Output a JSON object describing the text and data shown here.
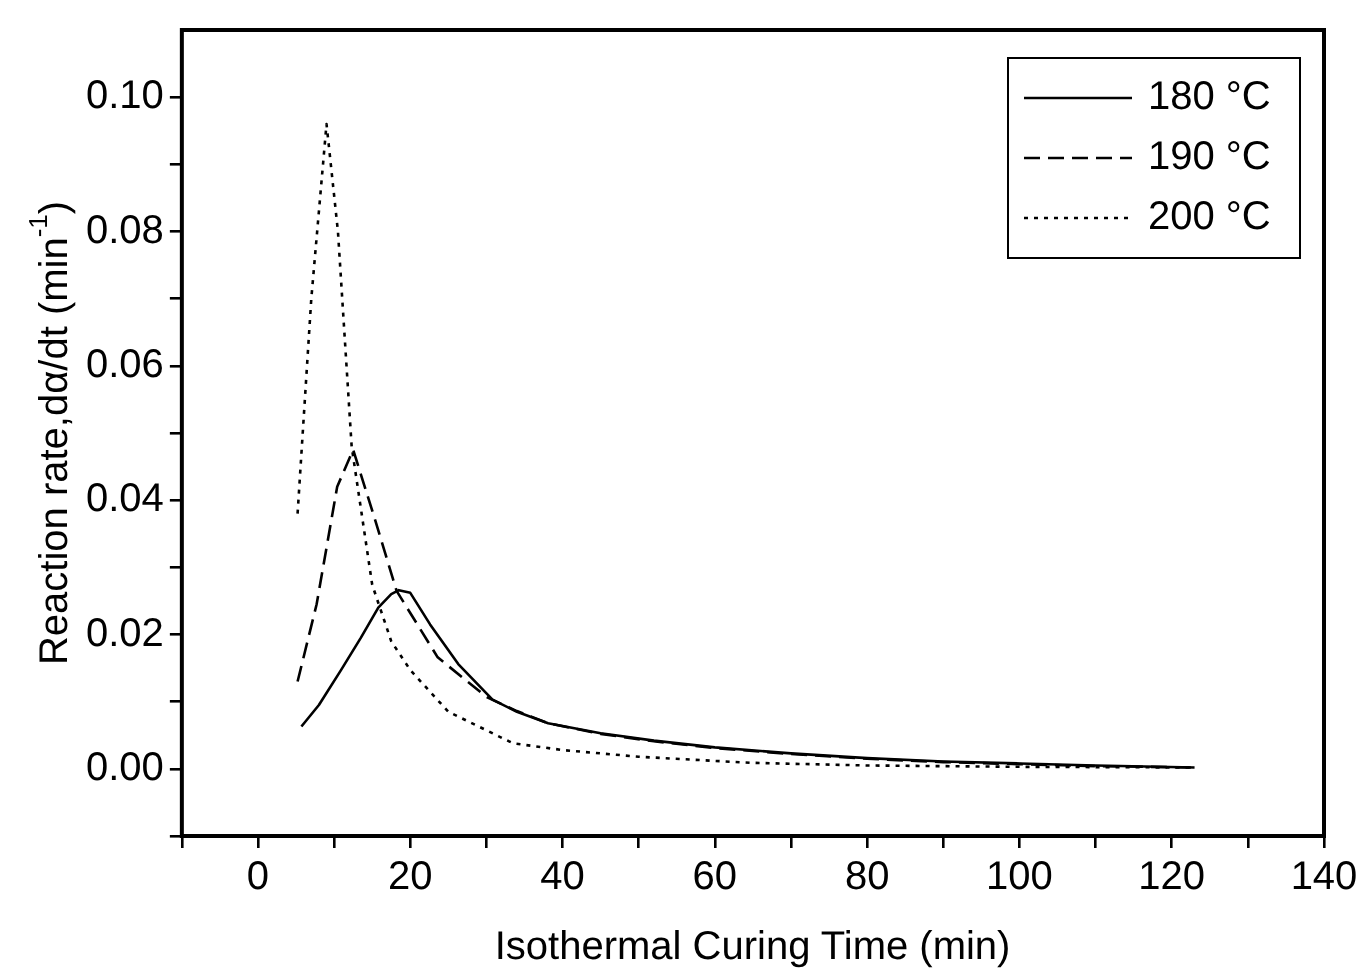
{
  "chart_data": {
    "type": "line",
    "xlabel": "Isothermal Curing Time (min)",
    "ylabel": "Reaction rate,dα/dt (min$^{-1}$)",
    "xlim": [
      -10,
      140
    ],
    "ylim": [
      -0.01,
      0.11
    ],
    "xticks": [
      {
        "value": -10,
        "label": null
      },
      0,
      {
        "value": 10,
        "label": null
      },
      20,
      {
        "value": 30,
        "label": null
      },
      40,
      {
        "value": 50,
        "label": null
      },
      60,
      {
        "value": 70,
        "label": null
      },
      80,
      {
        "value": 90,
        "label": null
      },
      100,
      {
        "value": 110,
        "label": null
      },
      120,
      {
        "value": 130,
        "label": null
      },
      140
    ],
    "yticks": [
      {
        "value": -0.01,
        "label": null
      },
      {
        "value": 0,
        "label": "0.00"
      },
      {
        "value": 0.01,
        "label": null
      },
      {
        "value": 0.02,
        "label": "0.02"
      },
      {
        "value": 0.03,
        "label": null
      },
      {
        "value": 0.04,
        "label": "0.04"
      },
      {
        "value": 0.05,
        "label": null
      },
      {
        "value": 0.06,
        "label": "0.06"
      },
      {
        "value": 0.07,
        "label": null
      },
      {
        "value": 0.08,
        "label": "0.08"
      },
      {
        "value": 0.09,
        "label": null
      },
      {
        "value": 0.1,
        "label": "0.10"
      }
    ],
    "grid": false,
    "legend": "top right",
    "marker": "none",
    "series": [
      {
        "name": "180 °C",
        "color": "#000000",
        "line_style": "solid",
        "x": [
          5.7,
          8,
          10.9,
          13.5,
          15.8,
          17.5,
          18.5,
          20,
          22.6,
          26.3,
          30.8,
          34,
          38.1,
          45,
          52,
          60,
          70,
          80,
          90,
          100,
          110,
          123
        ],
        "values": [
          0.0063,
          0.0095,
          0.0147,
          0.0195,
          0.024,
          0.026,
          0.0266,
          0.0262,
          0.0215,
          0.0156,
          0.0103,
          0.0085,
          0.0068,
          0.0053,
          0.0042,
          0.0032,
          0.0023,
          0.0016,
          0.0011,
          0.0008,
          0.0005,
          0.0002
        ]
      },
      {
        "name": "190 °C",
        "color": "#000000",
        "line_style": "dashed",
        "x": [
          5.2,
          7.7,
          10.4,
          12.5,
          15.4,
          18.2,
          23.6,
          30,
          34,
          38.1,
          45,
          52,
          60,
          70,
          80,
          90,
          100,
          110,
          123
        ],
        "values": [
          0.013,
          0.0245,
          0.042,
          0.0475,
          0.037,
          0.0265,
          0.0166,
          0.0107,
          0.0086,
          0.0068,
          0.0052,
          0.0041,
          0.0031,
          0.0022,
          0.0015,
          0.001,
          0.0007,
          0.0004,
          0.0002
        ]
      },
      {
        "name": "200 °C",
        "color": "#000000",
        "line_style": "dotted",
        "x": [
          5.2,
          7,
          9,
          10.5,
          12.3,
          15,
          17.5,
          20,
          25,
          33.5,
          40,
          50,
          64.6,
          80,
          100,
          123
        ],
        "values": [
          0.038,
          0.07,
          0.096,
          0.08,
          0.048,
          0.0274,
          0.019,
          0.0147,
          0.0085,
          0.0038,
          0.0028,
          0.0018,
          0.0009,
          0.0005,
          0.0003,
          0.0002
        ]
      }
    ]
  }
}
